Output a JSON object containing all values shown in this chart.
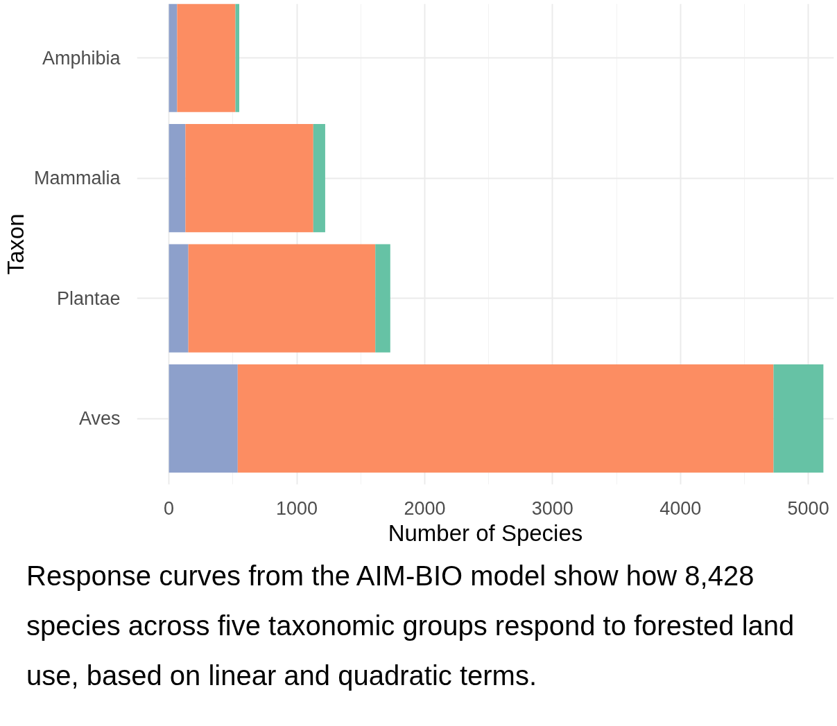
{
  "chart_data": {
    "type": "bar",
    "orientation": "horizontal",
    "stacked": true,
    "xlabel": "Number of Species",
    "ylabel": "Taxon",
    "categories": [
      "Amphibia",
      "Mammalia",
      "Plantae",
      "Aves"
    ],
    "series": [
      {
        "color": "#8da0cb",
        "values": [
          64,
          129,
          152,
          538
        ]
      },
      {
        "color": "#fc8d62",
        "values": [
          456,
          1000,
          1462,
          4190
        ]
      },
      {
        "color": "#66c2a5",
        "values": [
          30,
          93,
          117,
          390
        ]
      }
    ],
    "xlim": [
      -250,
      5200
    ],
    "xticks": [
      0,
      1000,
      2000,
      3000,
      4000,
      5000
    ],
    "grid": true,
    "annotations": [
      "Response curves from the AIM-BIO model show how 8,428 species across five taxonomic groups respond to forested land use, based on linear and quadratic terms."
    ]
  }
}
